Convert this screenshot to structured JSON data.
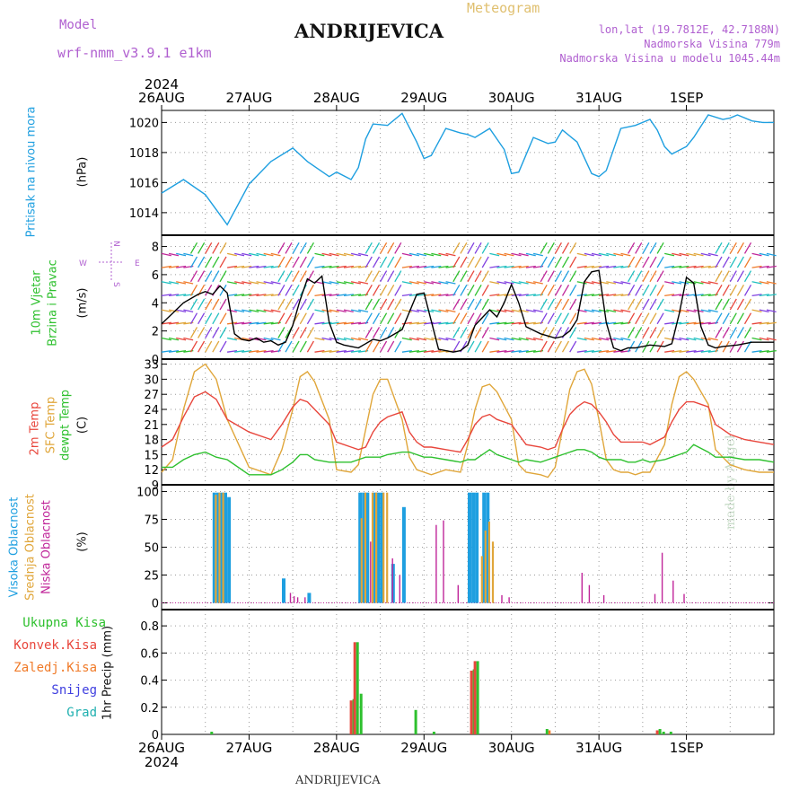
{
  "header": {
    "model_label": "Model",
    "model_name": "wrf-nmm_v3.9.1 e1km",
    "station": "ANDRIJEVICA",
    "meteogram": "Meteogram",
    "lonlat": "lon,lat (19.7812E, 42.7188N)",
    "elevation": "Nadmorska Visina 779m",
    "model_elevation": "Nadmorska Visina u modelu 1045.44m",
    "footer_station": "ANDRIJEVICA",
    "watermark": "made by Angel",
    "year_top": "2024",
    "year_bottom": "2024"
  },
  "colors": {
    "pressure": "#1e9fe0",
    "temp2m": "#e8463c",
    "sfc": "#e0a63a",
    "dewpt": "#2ec02e",
    "high_cloud": "#1e9fe0",
    "mid_cloud": "#e0a63a",
    "low_cloud": "#c0269a",
    "total_precip": "#2ec02e",
    "conv_precip": "#e8463c",
    "freeze_precip": "#f07a28",
    "snow": "#4040e0",
    "grad": "#20b0b0",
    "wind_label": "#2ec02e",
    "wind_dir_legend": "#b060d0"
  },
  "dates": [
    "26AUG",
    "27AUG",
    "28AUG",
    "29AUG",
    "30AUG",
    "31AUG",
    "1SEP"
  ],
  "panels": {
    "pressure": {
      "labels": [
        "Pritisak na nivou mora",
        "(hPa)"
      ],
      "ticks": [
        1014,
        1016,
        1018,
        1020
      ],
      "ylim": [
        1012.5,
        1020.8
      ]
    },
    "wind": {
      "labels": [
        "10m Vjetar",
        "Brzina i Pravac",
        "(m/s)"
      ],
      "ticks": [
        0,
        2,
        4,
        6,
        8
      ],
      "ylim": [
        0,
        8.8
      ],
      "dir_legend": {
        "n": "N",
        "s": "S",
        "w": "W",
        "e": "E"
      }
    },
    "temperature": {
      "labels": [
        "2m Temp",
        "SFC Temp",
        "dewpt Temp",
        "(C)"
      ],
      "ticks": [
        9,
        12,
        15,
        18,
        21,
        24,
        27,
        30,
        33
      ],
      "ylim": [
        9,
        34
      ]
    },
    "cloud": {
      "labels": [
        "Visoka Oblacnost",
        "Srednja Oblacnost",
        "Niska Oblacnost",
        "(%)"
      ],
      "ticks": [
        0,
        25,
        50,
        75,
        100
      ],
      "ylim": [
        -6,
        106
      ]
    },
    "precip": {
      "labels": [
        "Ukupna Kisa",
        "Konvek.Kisa",
        "Zaledj.Kisa",
        "Snijeg",
        "Grad"
      ],
      "axis_label": "1hr Precip (mm)",
      "ticks": [
        0,
        0.2,
        0.4,
        0.6,
        0.8
      ],
      "ylim": [
        0,
        0.92
      ]
    }
  },
  "chart_data": [
    {
      "type": "line",
      "title": "Pritisak na nivou mora",
      "ylabel": "(hPa)",
      "x_hours": [
        0,
        6,
        12,
        18,
        24,
        30,
        36,
        40,
        46,
        48,
        52,
        54,
        56,
        58,
        62,
        66,
        70,
        72,
        74,
        78,
        82,
        84,
        86,
        90,
        94,
        96,
        98,
        102,
        106,
        108,
        110,
        114,
        118,
        120,
        122,
        124,
        126,
        130,
        134,
        136,
        138,
        140,
        144,
        146,
        150,
        154,
        156,
        158,
        162,
        165,
        168
      ],
      "series": [
        {
          "name": "Pressure",
          "values": [
            1015.3,
            1016.2,
            1015.2,
            1013.2,
            1015.9,
            1017.4,
            1018.3,
            1017.4,
            1016.4,
            1016.7,
            1016.2,
            1017.0,
            1018.9,
            1019.9,
            1019.8,
            1020.6,
            1018.7,
            1017.6,
            1017.8,
            1019.6,
            1019.3,
            1019.2,
            1019.0,
            1019.6,
            1018.2,
            1016.6,
            1016.7,
            1019.0,
            1018.6,
            1018.7,
            1019.5,
            1018.7,
            1016.6,
            1016.4,
            1016.8,
            1018.2,
            1019.6,
            1019.8,
            1020.2,
            1019.5,
            1018.4,
            1017.9,
            1018.4,
            1019.0,
            1020.5,
            1020.2,
            1020.3,
            1020.5,
            1020.1,
            1020.0,
            1020.0
          ]
        }
      ]
    },
    {
      "type": "line",
      "title": "10m Vjetar Brzina i Pravac",
      "ylabel": "(m/s)",
      "x_hours": [
        0,
        6,
        10,
        12,
        14,
        16,
        18,
        20,
        22,
        24,
        26,
        28,
        30,
        32,
        34,
        36,
        38,
        40,
        42,
        44,
        46,
        48,
        50,
        52,
        54,
        56,
        58,
        60,
        62,
        66,
        70,
        72,
        76,
        80,
        82,
        84,
        86,
        90,
        92,
        94,
        96,
        98,
        100,
        104,
        108,
        110,
        112,
        114,
        116,
        118,
        120,
        122,
        124,
        126,
        128,
        130,
        134,
        138,
        140,
        142,
        144,
        146,
        148,
        150,
        152,
        154,
        158,
        162,
        166,
        168
      ],
      "series": [
        {
          "name": "Wind speed",
          "values": [
            2.5,
            4.0,
            4.6,
            4.8,
            4.6,
            5.2,
            4.7,
            1.8,
            1.4,
            1.3,
            1.5,
            1.2,
            1.3,
            1.0,
            1.2,
            2.4,
            4.2,
            5.7,
            5.4,
            5.9,
            2.6,
            1.2,
            1.0,
            0.9,
            0.8,
            1.1,
            1.4,
            1.3,
            1.5,
            2.1,
            4.6,
            4.7,
            0.7,
            0.5,
            0.6,
            1.0,
            2.4,
            3.5,
            3.0,
            4.0,
            5.3,
            4.0,
            2.3,
            1.8,
            1.5,
            1.6,
            2.0,
            2.8,
            5.5,
            6.2,
            6.3,
            2.6,
            0.8,
            0.6,
            0.8,
            0.8,
            1.0,
            0.9,
            1.1,
            3.2,
            5.8,
            5.4,
            2.3,
            1.0,
            0.8,
            0.9,
            1.0,
            1.2,
            1.2,
            1.2
          ]
        }
      ]
    },
    {
      "type": "line",
      "title": "Temperature",
      "ylabel": "(C)",
      "x_hours": [
        0,
        3,
        6,
        9,
        12,
        15,
        18,
        24,
        30,
        33,
        36,
        38,
        40,
        42,
        46,
        48,
        52,
        54,
        56,
        58,
        60,
        62,
        66,
        68,
        70,
        72,
        74,
        78,
        82,
        84,
        86,
        88,
        90,
        92,
        96,
        98,
        100,
        104,
        106,
        108,
        110,
        112,
        114,
        116,
        118,
        120,
        122,
        124,
        126,
        128,
        130,
        132,
        134,
        138,
        140,
        142,
        144,
        146,
        150,
        152,
        156,
        160,
        164,
        168
      ],
      "series": [
        {
          "name": "2m Temp",
          "values": [
            16.5,
            18.0,
            22.5,
            26.5,
            27.5,
            26.0,
            22.0,
            19.5,
            18.0,
            21.0,
            24.5,
            26.0,
            25.5,
            24.0,
            21.0,
            17.5,
            16.5,
            16.0,
            16.5,
            19.5,
            21.5,
            22.5,
            23.5,
            19.5,
            17.5,
            16.5,
            16.5,
            16.0,
            15.5,
            18.0,
            21.0,
            22.5,
            23.0,
            22.0,
            21.0,
            19.0,
            17.0,
            16.5,
            16.0,
            16.5,
            20.0,
            23.0,
            24.5,
            25.5,
            25.0,
            23.5,
            21.5,
            19.0,
            17.5,
            17.5,
            17.5,
            17.5,
            17.0,
            18.5,
            21.5,
            24.0,
            25.5,
            25.5,
            24.5,
            21.0,
            19.0,
            18.0,
            17.5,
            17.0
          ]
        },
        {
          "name": "SFC Temp",
          "values": [
            11.5,
            14.0,
            24.0,
            31.5,
            33.0,
            30.0,
            22.0,
            12.5,
            11.0,
            16.0,
            24.0,
            30.5,
            31.5,
            29.5,
            22.0,
            12.0,
            11.5,
            13.0,
            20.0,
            27.0,
            30.0,
            30.0,
            22.0,
            14.5,
            12.0,
            11.5,
            11.0,
            12.0,
            11.5,
            17.0,
            24.0,
            28.5,
            29.0,
            27.5,
            22.0,
            13.0,
            11.5,
            11.0,
            10.5,
            12.5,
            20.0,
            28.0,
            31.5,
            32.0,
            29.0,
            22.0,
            14.0,
            12.0,
            11.5,
            11.5,
            11.0,
            11.5,
            11.5,
            17.0,
            25.0,
            30.5,
            31.5,
            30.0,
            25.0,
            16.0,
            13.0,
            12.0,
            11.5,
            11.5
          ]
        },
        {
          "name": "dewpt Temp",
          "values": [
            12.5,
            12.5,
            14.0,
            15.0,
            15.5,
            14.5,
            14.0,
            11.0,
            11.0,
            12.0,
            13.5,
            15.0,
            15.0,
            14.0,
            13.5,
            13.5,
            13.5,
            14.0,
            14.5,
            14.5,
            14.5,
            15.0,
            15.5,
            15.5,
            15.0,
            14.5,
            14.5,
            14.0,
            13.5,
            14.0,
            14.0,
            15.0,
            16.0,
            15.0,
            14.0,
            13.5,
            14.0,
            13.5,
            14.0,
            14.5,
            15.0,
            15.5,
            16.0,
            16.0,
            15.5,
            14.5,
            14.0,
            14.0,
            14.0,
            13.5,
            13.5,
            14.0,
            13.5,
            14.0,
            14.5,
            15.0,
            15.5,
            17.0,
            15.5,
            14.5,
            14.5,
            14.0,
            14.0,
            13.5
          ]
        }
      ]
    },
    {
      "type": "bar",
      "title": "Oblacnost",
      "ylabel": "(%)",
      "x_hours": [
        14,
        15,
        16,
        17,
        18,
        33,
        34,
        35,
        36,
        38,
        40,
        54,
        55,
        56,
        57,
        58,
        59,
        60,
        61,
        62,
        63,
        64,
        66,
        67,
        72,
        74,
        76,
        78,
        80,
        84,
        85,
        86,
        87,
        88,
        89,
        90,
        91,
        92,
        94,
        96,
        98,
        114,
        116,
        120,
        122,
        124,
        134,
        136,
        139,
        140,
        141,
        142
      ],
      "series": [
        {
          "name": "Visoka Oblacnost",
          "values": [
            99,
            99,
            99,
            99,
            95,
            22,
            0,
            0,
            0,
            0,
            9,
            99,
            99,
            99,
            0,
            99,
            99,
            99,
            0,
            0,
            35,
            0,
            86,
            0,
            0,
            0,
            0,
            0,
            0,
            99,
            99,
            99,
            0,
            99,
            99,
            0,
            0,
            0,
            0,
            0,
            0,
            0,
            0,
            0,
            0,
            0,
            0,
            0,
            0,
            0,
            0,
            0
          ]
        },
        {
          "name": "Srednja Oblacnost",
          "values": [
            97,
            99,
            99,
            0,
            0,
            0,
            0,
            0,
            0,
            0,
            0,
            76,
            99,
            0,
            99,
            99,
            0,
            99,
            99,
            0,
            0,
            0,
            0,
            0,
            0,
            0,
            0,
            0,
            0,
            0,
            0,
            0,
            42,
            65,
            73,
            55,
            0,
            0,
            0,
            0,
            0,
            0,
            0,
            0,
            0,
            0,
            0,
            0,
            0,
            0,
            0,
            0
          ]
        },
        {
          "name": "Niska Oblacnost",
          "values": [
            0,
            0,
            0,
            0,
            0,
            0,
            9,
            6,
            5,
            5,
            0,
            0,
            0,
            55,
            0,
            0,
            0,
            0,
            0,
            40,
            0,
            25,
            0,
            0,
            0,
            70,
            74,
            0,
            16,
            0,
            0,
            0,
            0,
            0,
            0,
            0,
            0,
            7,
            5,
            0,
            0,
            27,
            16,
            7,
            0,
            0,
            8,
            45,
            20,
            0,
            0,
            8
          ]
        }
      ]
    },
    {
      "type": "bar",
      "title": "1hr Precip",
      "ylabel": "1hr Precip (mm)",
      "x_hours": [
        13,
        52,
        53,
        54,
        69,
        74,
        85,
        86,
        88,
        105,
        115,
        125,
        136,
        137,
        139
      ],
      "series": [
        {
          "name": "Ukupna Kisa",
          "values": [
            0.02,
            0.26,
            0.68,
            0.3,
            0.18,
            0.02,
            0.48,
            0.54,
            0,
            0.04,
            0,
            0,
            0.04,
            0.02,
            0.02
          ]
        },
        {
          "name": "Konvek.Kisa",
          "values": [
            0,
            0.25,
            0.68,
            0,
            0,
            0,
            0.47,
            0.54,
            0,
            0,
            0,
            0,
            0.03,
            0,
            0
          ]
        },
        {
          "name": "Zaledj.Kisa",
          "values": [
            0,
            0,
            0,
            0,
            0,
            0,
            0,
            0,
            0,
            0.03,
            0,
            0,
            0,
            0,
            0
          ]
        },
        {
          "name": "Snijeg",
          "values": [
            0,
            0,
            0,
            0,
            0,
            0,
            0,
            0,
            0,
            0,
            0,
            0,
            0,
            0,
            0
          ]
        },
        {
          "name": "Grad",
          "values": [
            0,
            0,
            0,
            0,
            0,
            0,
            0,
            0,
            0,
            0,
            0,
            0,
            0,
            0,
            0
          ]
        }
      ]
    }
  ]
}
